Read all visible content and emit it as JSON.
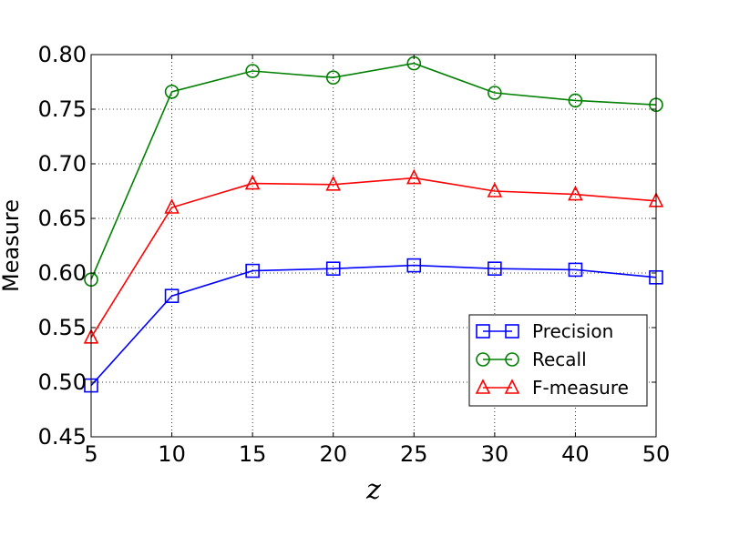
{
  "chart_data": {
    "type": "line",
    "categories": [
      "5",
      "10",
      "15",
      "20",
      "25",
      "30",
      "40",
      "50"
    ],
    "xlabel": "z",
    "ylabel": "Measure",
    "ylim": [
      0.45,
      0.8
    ],
    "yticks": [
      "0.45",
      "0.50",
      "0.55",
      "0.60",
      "0.65",
      "0.70",
      "0.75",
      "0.80"
    ],
    "grid": true,
    "legend_position": "lower-right",
    "series": [
      {
        "name": "Precision",
        "color": "#0000ff",
        "marker": "square",
        "values": [
          0.497,
          0.579,
          0.602,
          0.604,
          0.607,
          0.604,
          0.603,
          0.596
        ]
      },
      {
        "name": "Recall",
        "color": "#008000",
        "marker": "circle",
        "values": [
          0.594,
          0.766,
          0.785,
          0.779,
          0.792,
          0.765,
          0.758,
          0.754
        ]
      },
      {
        "name": "F-measure",
        "color": "#ff0000",
        "marker": "triangle",
        "values": [
          0.541,
          0.66,
          0.682,
          0.681,
          0.687,
          0.675,
          0.672,
          0.666
        ]
      }
    ]
  }
}
